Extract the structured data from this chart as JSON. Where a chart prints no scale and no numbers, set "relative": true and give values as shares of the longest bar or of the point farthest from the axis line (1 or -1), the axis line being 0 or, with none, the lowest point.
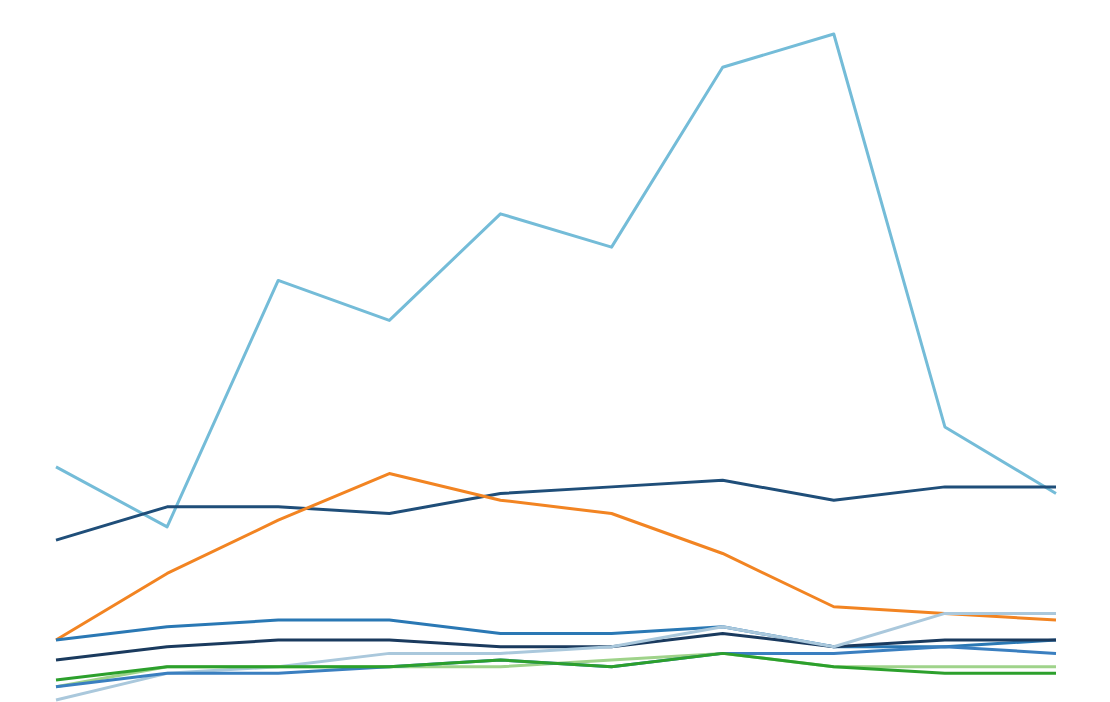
{
  "chart_data": {
    "type": "line",
    "relative": true,
    "categories": [
      null,
      null,
      null,
      null,
      null,
      null,
      null,
      null,
      null,
      null
    ],
    "series": [
      {
        "color": "#74bcd8",
        "values": [
          0.35,
          0.26,
          0.63,
          0.57,
          0.73,
          0.68,
          0.95,
          1,
          0.41,
          0.31
        ]
      },
      {
        "color": "#1f4e79",
        "values": [
          0.24,
          0.29,
          0.29,
          0.28,
          0.31,
          0.32,
          0.33,
          0.3,
          0.32,
          0.32
        ]
      },
      {
        "color": "#f28422",
        "values": [
          0.09,
          0.19,
          0.27,
          0.34,
          0.3,
          0.28,
          0.22,
          0.14,
          0.13,
          0.12
        ]
      },
      {
        "color": "#2a78b4",
        "values": [
          0.09,
          0.11,
          0.12,
          0.12,
          0.1,
          0.1,
          0.11,
          0.08,
          0.08,
          0.09
        ]
      },
      {
        "color": "#1a3a5e",
        "values": [
          0.06,
          0.08,
          0.09,
          0.09,
          0.08,
          0.08,
          0.1,
          0.08,
          0.09,
          0.09
        ]
      },
      {
        "color": "#aac8dc",
        "values": [
          0,
          0.04,
          0.05,
          0.07,
          0.07,
          0.08,
          0.11,
          0.08,
          0.13,
          0.13
        ]
      },
      {
        "color": "#9fd38a",
        "values": [
          0.02,
          0.05,
          0.05,
          0.05,
          0.05,
          0.06,
          0.07,
          0.05,
          0.05,
          0.05
        ]
      },
      {
        "color": "#3a7fc0",
        "values": [
          0.02,
          0.04,
          0.04,
          0.05,
          0.06,
          0.05,
          0.07,
          0.07,
          0.08,
          0.07
        ]
      },
      {
        "color": "#2ca02c",
        "values": [
          0.03,
          0.05,
          0.05,
          0.05,
          0.06,
          0.05,
          0.07,
          0.05,
          0.04,
          0.04
        ]
      }
    ]
  }
}
